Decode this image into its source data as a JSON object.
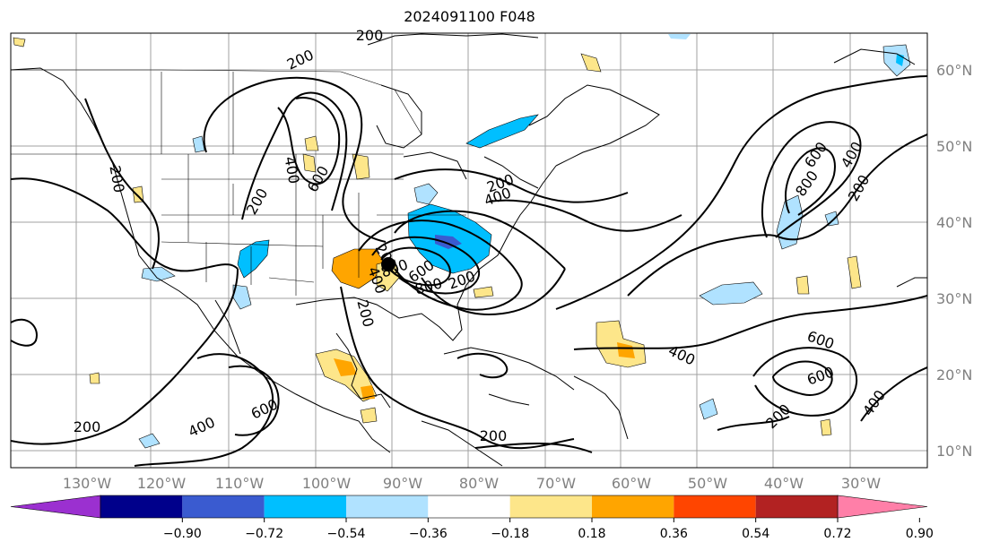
{
  "title": "2024091100 F048",
  "lon_labels": [
    "130°W",
    "120°W",
    "110°W",
    "100°W",
    "90°W",
    "80°W",
    "70°W",
    "60°W",
    "50°W",
    "40°W",
    "30°W"
  ],
  "lat_labels": [
    "60°N",
    "50°N",
    "40°N",
    "30°N",
    "20°N",
    "10°N"
  ],
  "contour_labels": [
    "200",
    "200",
    "200",
    "200",
    "400",
    "600",
    "200",
    "600",
    "800",
    "400",
    "200",
    "600",
    "800",
    "400",
    "200",
    "200",
    "600",
    "400",
    "200",
    "400",
    "200",
    "600",
    "400",
    "600",
    "800",
    "200",
    "200",
    "400"
  ],
  "colorbar": {
    "ticks": [
      "−0.90",
      "−0.72",
      "−0.54",
      "−0.36",
      "−0.18",
      "0.18",
      "0.36",
      "0.54",
      "0.72",
      "0.90"
    ],
    "colors": [
      "#9b30d0",
      "#00008b",
      "#3a5bd0",
      "#00bfff",
      "#b0e2ff",
      "#ffffff",
      "#fde68a",
      "#ffa500",
      "#ff4500",
      "#b22222",
      "#ff7fa8"
    ]
  },
  "storm_marker": "filled-circle"
}
